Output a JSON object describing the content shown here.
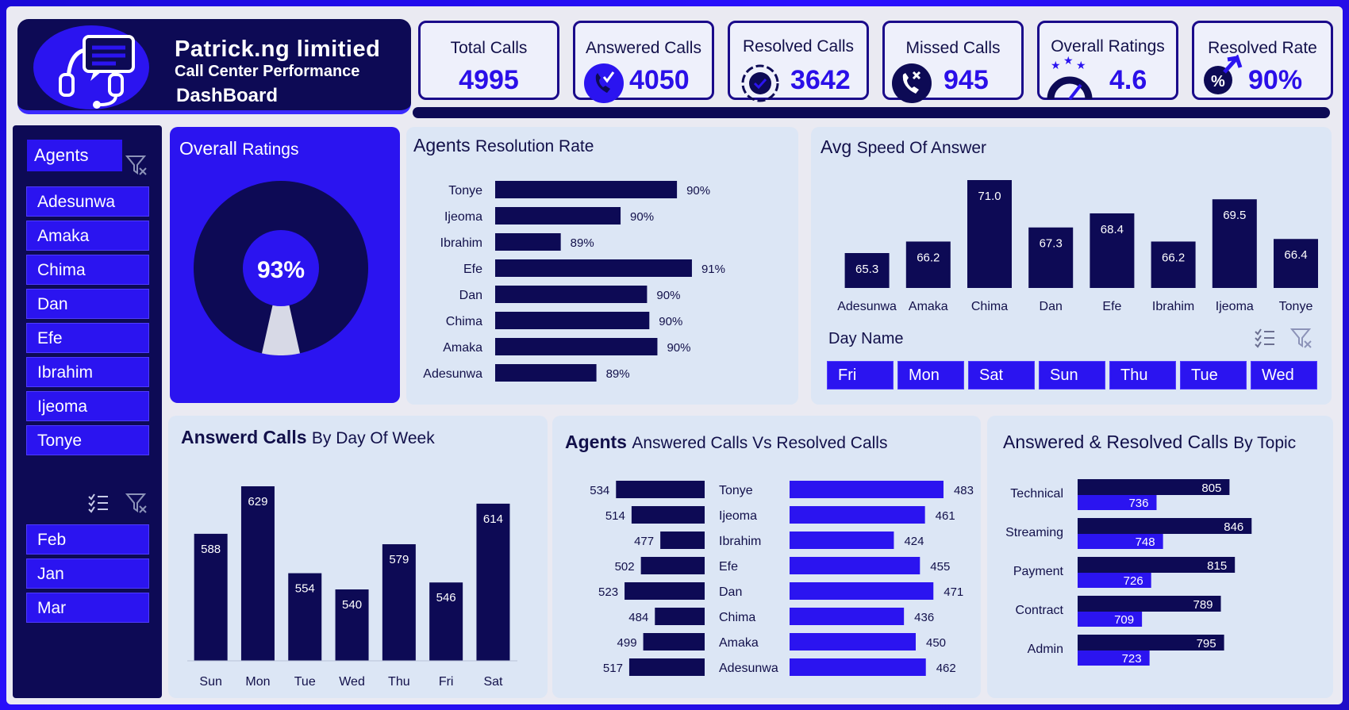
{
  "brand": {
    "title": "Patrick.ng limitied",
    "subtitle": "Call Center Performance",
    "dashboard": "DashBoard",
    "logo_icon": "headset-chat-icon"
  },
  "kpis": [
    {
      "label": "Total Calls",
      "value": "4995",
      "icon": ""
    },
    {
      "label": "Answered Calls",
      "value": "4050",
      "icon": "phone-check-icon"
    },
    {
      "label": "Resolved Calls",
      "value": "3642",
      "icon": "badge-check-icon"
    },
    {
      "label": "Missed Calls",
      "value": "945",
      "icon": "phone-missed-icon"
    },
    {
      "label": "Overall Ratings",
      "value": "4.6",
      "icon": "stars-gauge-icon"
    },
    {
      "label": "Resolved Rate",
      "value": "90%",
      "icon": "percent-arrow-icon"
    }
  ],
  "agents_slicer": {
    "title": "Agents",
    "items": [
      "Adesunwa",
      "Amaka",
      "Chima",
      "Dan",
      "Efe",
      "Ibrahim",
      "Ijeoma",
      "Tonye"
    ]
  },
  "month_slicer": {
    "items": [
      "Feb",
      "Jan",
      "Mar"
    ]
  },
  "overall_ratings": {
    "title_a": "Overall",
    "title_b": "Ratings",
    "value_label": "93%",
    "value": 0.93
  },
  "resolution": {
    "title_a": "Agents",
    "title_b": "Resolution Rate"
  },
  "speed": {
    "title_a": "Avg",
    "title_b": "Speed Of Answer",
    "day_slicer_title": "Day Name",
    "days": [
      "Fri",
      "Mon",
      "Sat",
      "Sun",
      "Thu",
      "Tue",
      "Wed"
    ]
  },
  "dow": {
    "title_a": "Answerd Calls",
    "title_b": "By Day Of Week"
  },
  "avr": {
    "title_a": "Agents",
    "title_b": "Answered Calls Vs Resolved Calls"
  },
  "topic": {
    "title_a": "Answered & Resolved Calls",
    "title_b": "By Topic"
  },
  "colors": {
    "navy": "#0d0a55",
    "blue": "#2b14f0",
    "panel": "#dce6f5"
  },
  "chart_data": [
    {
      "type": "bar",
      "orientation": "horizontal",
      "title": "Agents Resolution Rate",
      "categories": [
        "Tonye",
        "Ijeoma",
        "Ibrahim",
        "Efe",
        "Dan",
        "Chima",
        "Amaka",
        "Adesunwa"
      ],
      "values": [
        90,
        90,
        89,
        91,
        90,
        90,
        90,
        89
      ],
      "value_labels": [
        "90%",
        "90%",
        "89%",
        "91%",
        "90%",
        "90%",
        "90%",
        "89%"
      ],
      "bar_lengths": [
        0.79,
        0.545,
        0.285,
        0.855,
        0.66,
        0.67,
        0.705,
        0.44
      ]
    },
    {
      "type": "bar",
      "title": "Avg Speed Of Answer",
      "categories": [
        "Adesunwa",
        "Amaka",
        "Chima",
        "Dan",
        "Efe",
        "Ibrahim",
        "Ijeoma",
        "Tonye"
      ],
      "values": [
        65.3,
        66.2,
        71.0,
        67.3,
        68.4,
        66.2,
        69.5,
        66.4
      ]
    },
    {
      "type": "bar",
      "title": "Answerd Calls By Day Of Week",
      "categories": [
        "Sun",
        "Mon",
        "Tue",
        "Wed",
        "Thu",
        "Fri",
        "Sat"
      ],
      "values": [
        588,
        629,
        554,
        540,
        579,
        546,
        614
      ]
    },
    {
      "type": "bar",
      "orientation": "horizontal",
      "title": "Agents Answered Calls Vs Resolved Calls",
      "categories": [
        "Tonye",
        "Ijeoma",
        "Ibrahim",
        "Efe",
        "Dan",
        "Chima",
        "Amaka",
        "Adesunwa"
      ],
      "series": [
        {
          "values": [
            534,
            514,
            477,
            502,
            523,
            484,
            499,
            517
          ]
        },
        {
          "values": [
            483,
            461,
            424,
            455,
            471,
            436,
            450,
            462
          ]
        }
      ]
    },
    {
      "type": "bar",
      "orientation": "horizontal",
      "title": "Answered & Resolved Calls By Topic",
      "categories": [
        "Technical",
        "Streaming",
        "Payment",
        "Contract",
        "Admin"
      ],
      "series": [
        {
          "values": [
            805,
            846,
            815,
            789,
            795
          ]
        },
        {
          "values": [
            736,
            748,
            726,
            709,
            723
          ]
        }
      ]
    }
  ]
}
